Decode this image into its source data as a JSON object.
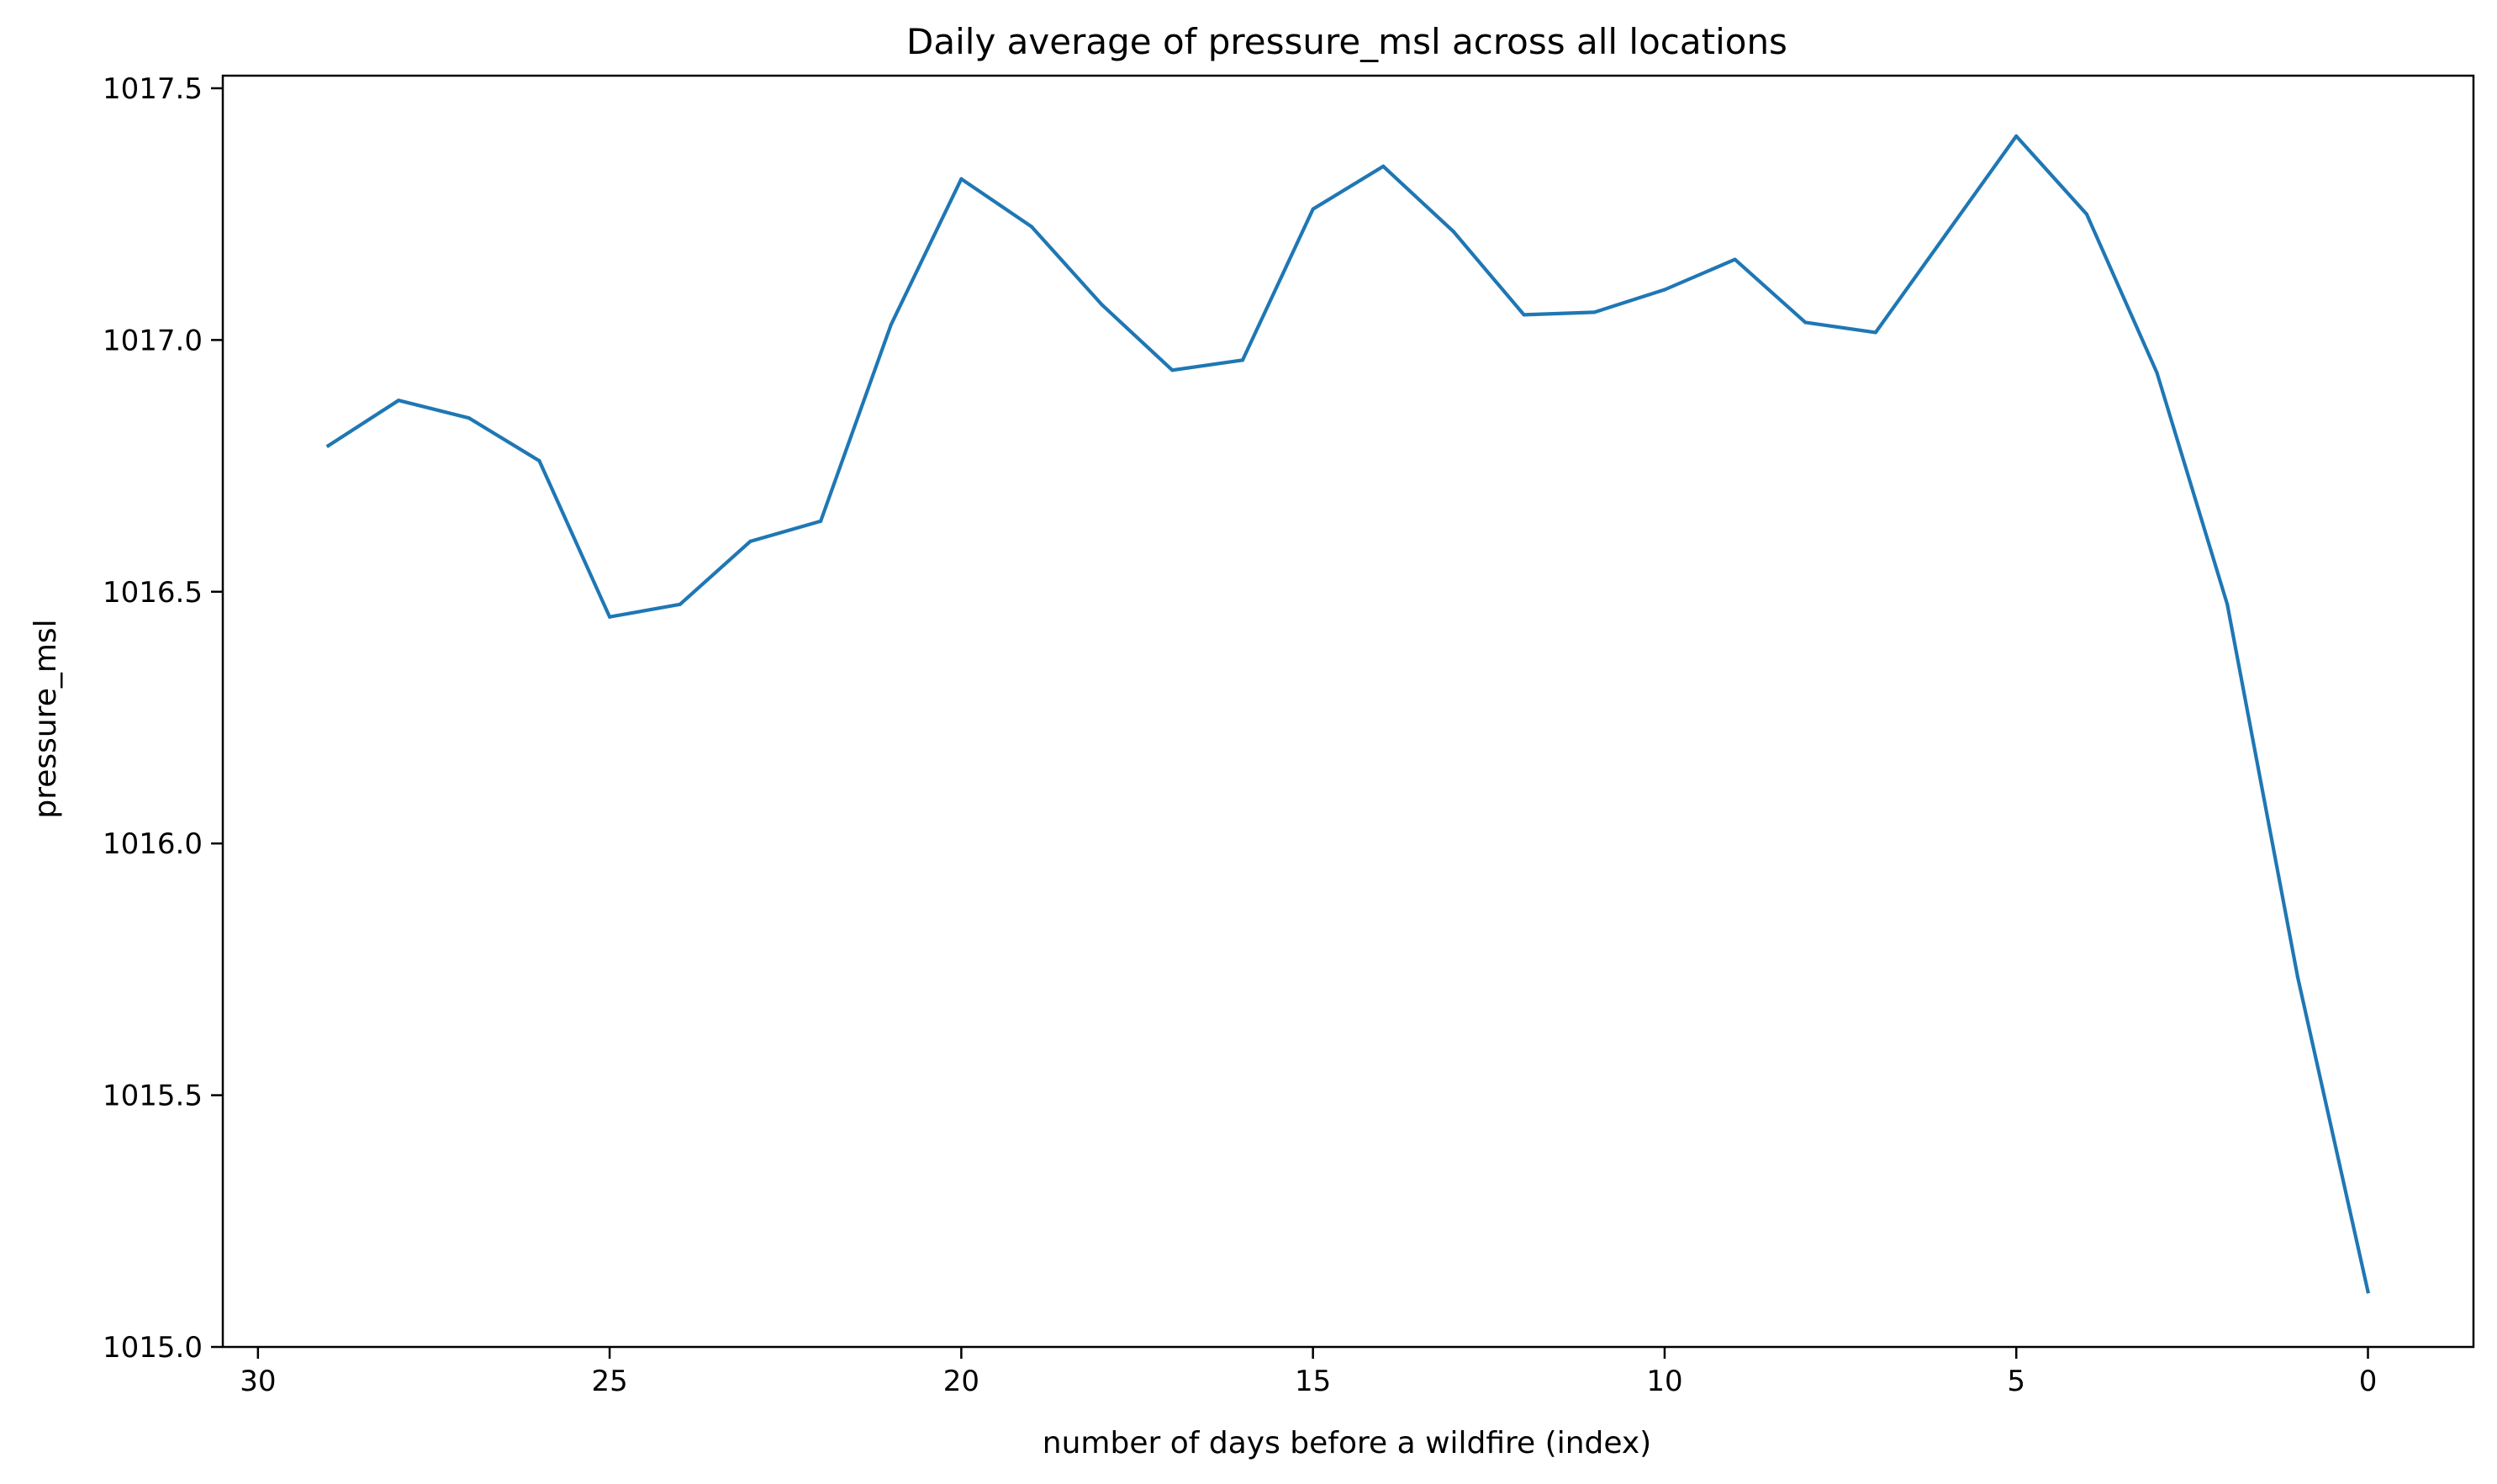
{
  "chart_data": {
    "type": "line",
    "title": "Daily average of pressure_msl across all locations",
    "xlabel": "number of days before a wildfire (index)",
    "ylabel": "pressure_msl",
    "xlim": [
      30.5,
      -1.5
    ],
    "ylim": [
      1015.0,
      1017.525
    ],
    "x_inverted": true,
    "grid": false,
    "legend": "none",
    "xticks": [
      30,
      25,
      20,
      15,
      10,
      5,
      0
    ],
    "xtick_labels": [
      "30",
      "25",
      "20",
      "15",
      "10",
      "5",
      "0"
    ],
    "yticks": [
      1015.0,
      1015.5,
      1016.0,
      1016.5,
      1017.0,
      1017.5
    ],
    "ytick_labels": [
      "1015.0",
      "1015.5",
      "1016.0",
      "1016.5",
      "1017.0",
      "1017.5"
    ],
    "series": [
      {
        "color": "#1f77b4",
        "x": [
          29,
          28,
          27,
          26,
          25,
          24,
          23,
          22,
          21,
          20,
          19,
          18,
          17,
          16,
          15,
          14,
          13,
          12,
          11,
          10,
          9,
          8,
          7,
          6,
          5,
          4,
          3,
          2,
          1,
          0
        ],
        "values": [
          1016.79,
          1016.88,
          1016.845,
          1016.76,
          1016.45,
          1016.475,
          1016.6,
          1016.64,
          1017.03,
          1017.32,
          1017.225,
          1017.07,
          1016.94,
          1016.96,
          1017.26,
          1017.345,
          1017.215,
          1017.05,
          1017.055,
          1017.1,
          1017.16,
          1017.035,
          1017.015,
          1017.21,
          1017.405,
          1017.25,
          1016.935,
          1016.475,
          1015.735,
          1015.11
        ]
      }
    ]
  }
}
